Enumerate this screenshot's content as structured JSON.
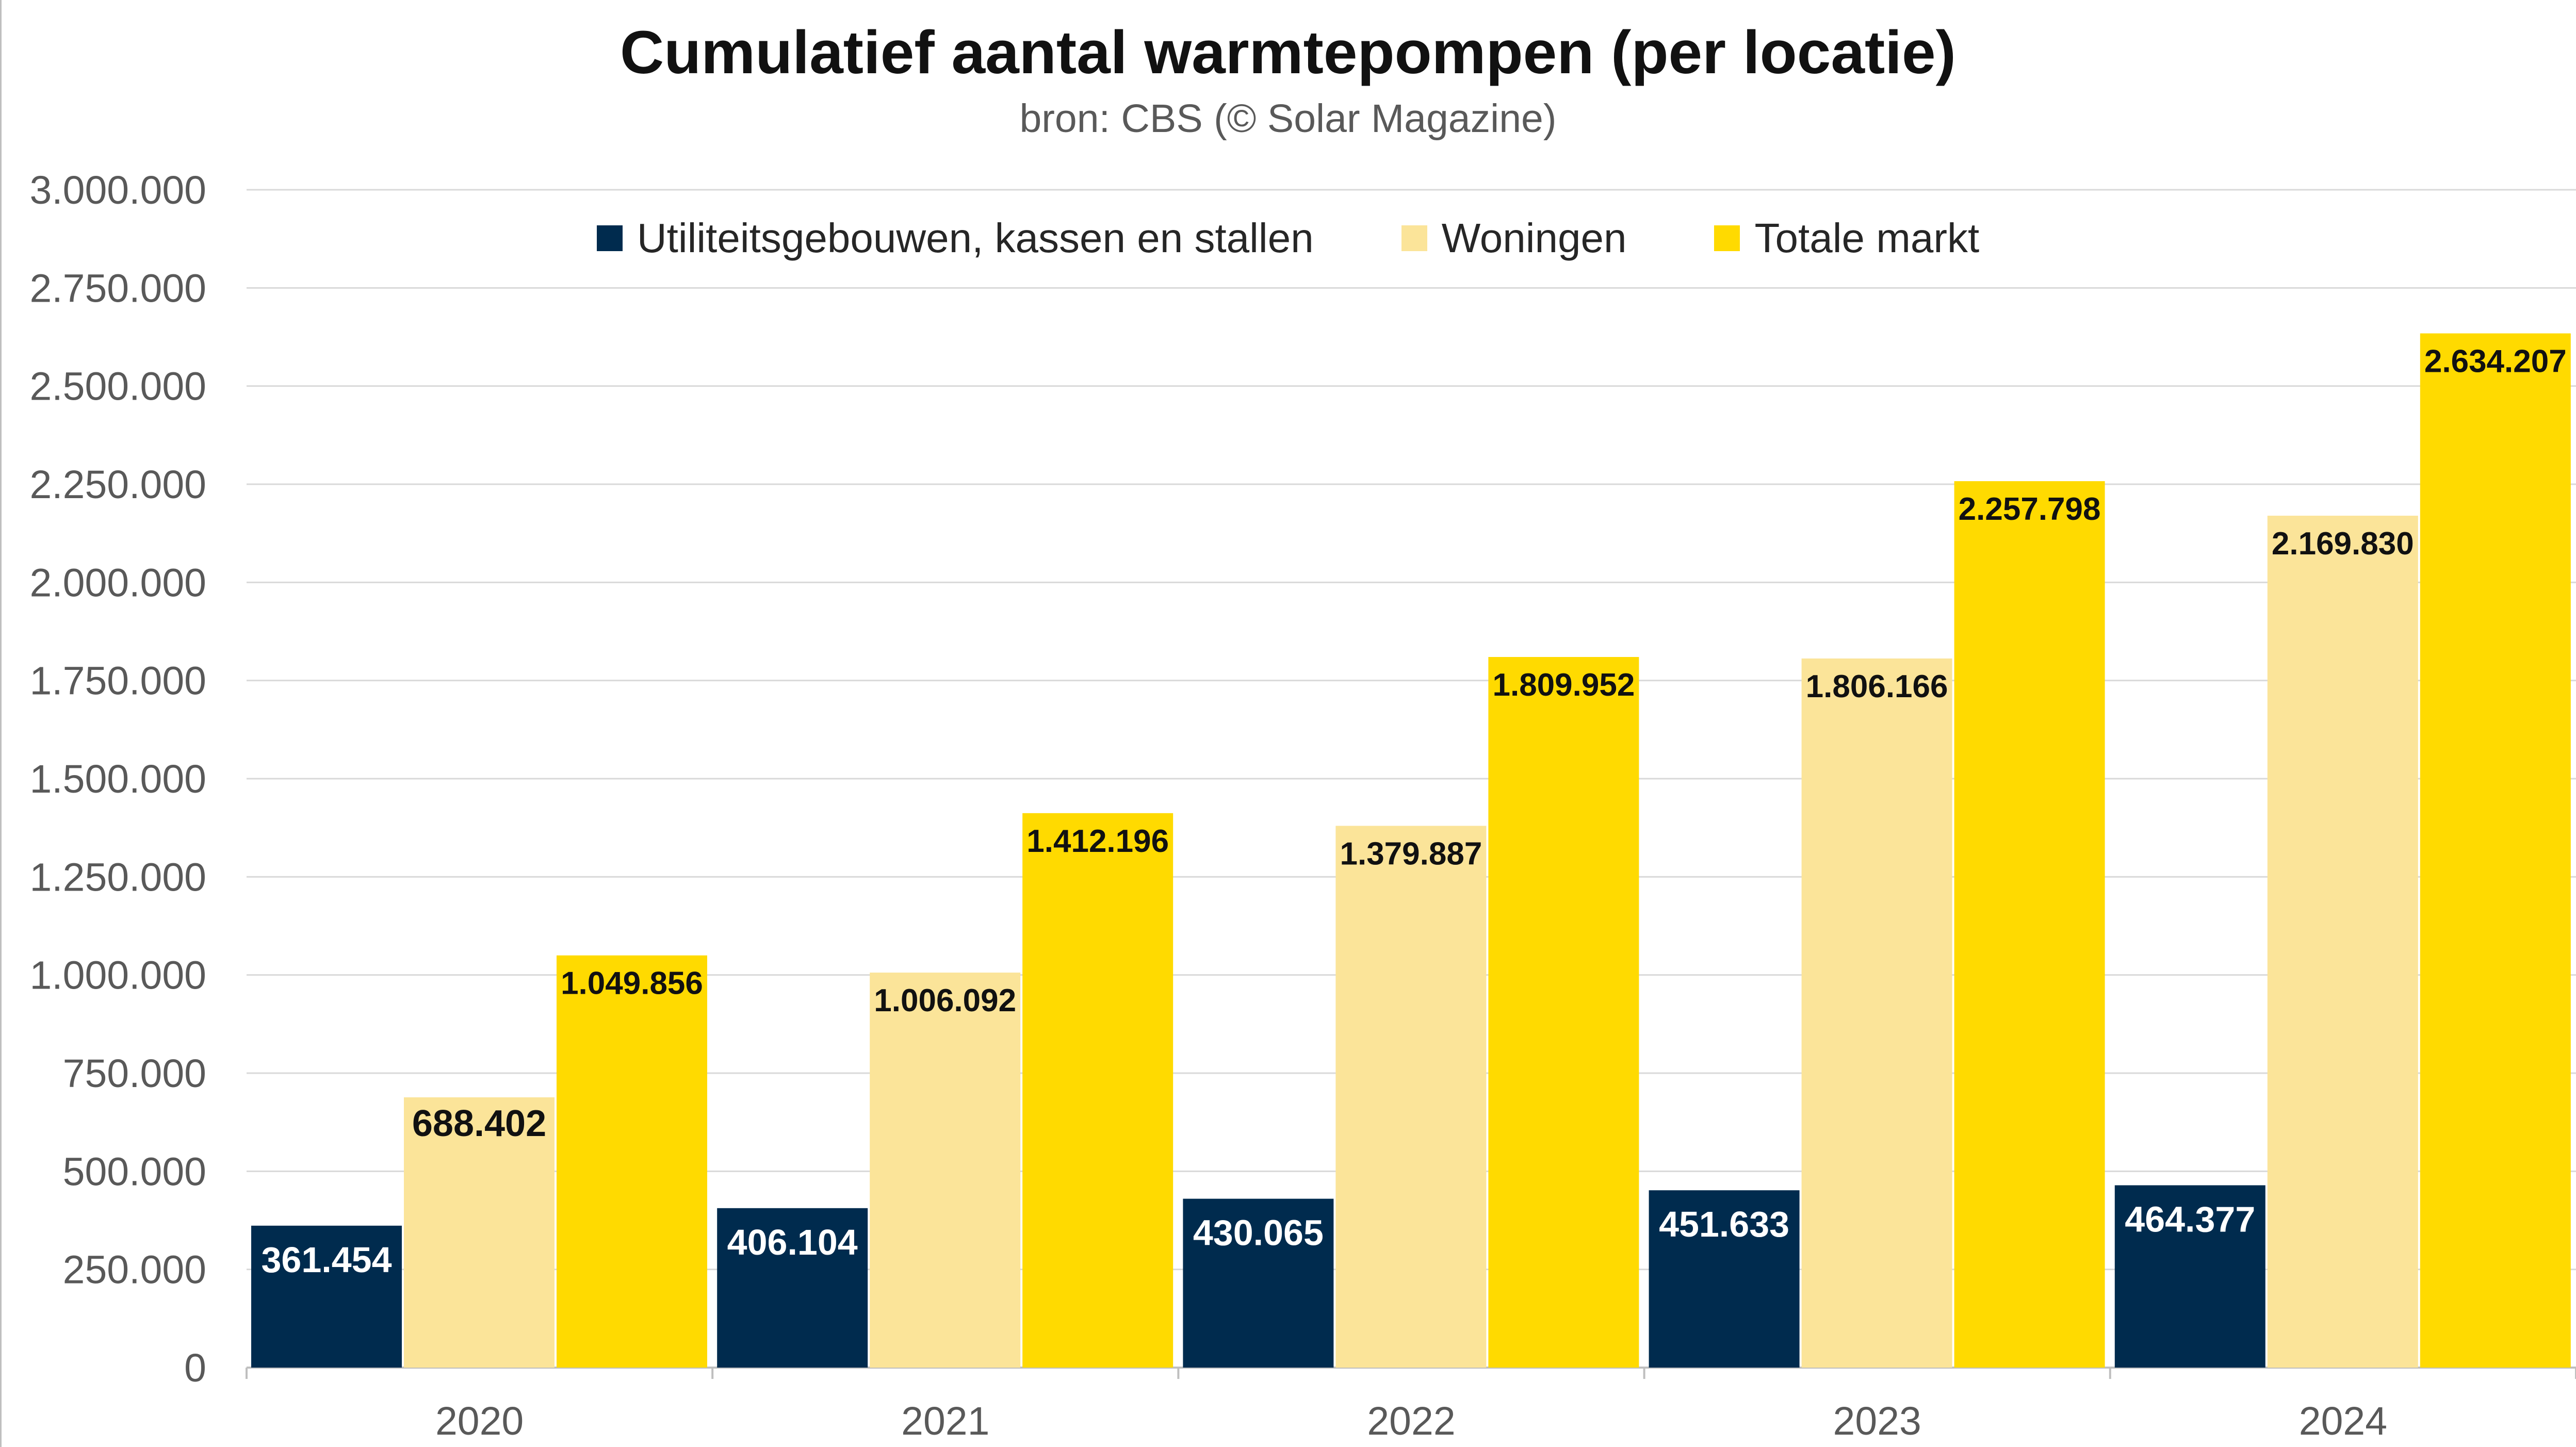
{
  "chart_data": {
    "type": "bar",
    "title": "Cumulatief aantal warmtepompen (per locatie)",
    "subtitle": "bron: CBS (© Solar Magazine)",
    "categories": [
      "2020",
      "2021",
      "2022",
      "2023",
      "2024"
    ],
    "series": [
      {
        "name": "Utiliteitsgebouwen, kassen en stallen",
        "color": "#002B4E",
        "label_color": "#ffffff",
        "values": [
          361454,
          406104,
          430065,
          451633,
          464377
        ],
        "labels": [
          "361.454",
          "406.104",
          "430.065",
          "451.633",
          "464.377"
        ]
      },
      {
        "name": "Woningen",
        "color": "#FBE499",
        "label_color": "#111111",
        "values": [
          688402,
          1006092,
          1379887,
          1806166,
          2169830
        ],
        "labels": [
          "688.402",
          "1.006.092",
          "1.379.887",
          "1.806.166",
          "2.169.830"
        ]
      },
      {
        "name": "Totale markt",
        "color": "#FFDA00",
        "label_color": "#111111",
        "values": [
          1049856,
          1412196,
          1809952,
          2257798,
          2634207
        ],
        "labels": [
          "1.049.856",
          "1.412.196",
          "1.809.952",
          "2.257.798",
          "2.634.207"
        ]
      }
    ],
    "ylim": [
      0,
      3000000
    ],
    "yticks": [
      0,
      250000,
      500000,
      750000,
      1000000,
      1250000,
      1500000,
      1750000,
      2000000,
      2250000,
      2500000,
      2750000,
      3000000
    ],
    "ytick_labels": [
      "0",
      "250.000",
      "500.000",
      "750.000",
      "1.000.000",
      "1.250.000",
      "1.500.000",
      "1.750.000",
      "2.000.000",
      "2.250.000",
      "2.500.000",
      "2.750.000",
      "3.000.000"
    ],
    "grid": true,
    "legend_position": "top"
  }
}
